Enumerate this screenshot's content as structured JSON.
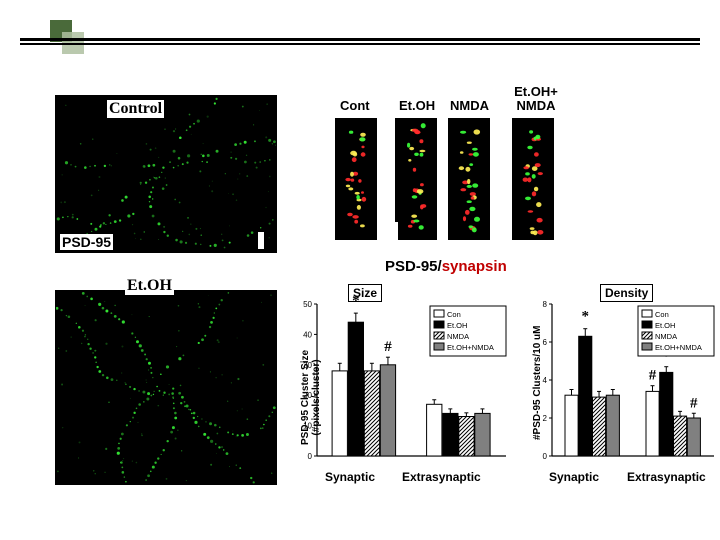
{
  "deco": {
    "accent1": "#4a6a3a",
    "accent2": "#aebfa0"
  },
  "micrographs": {
    "control_label": "Control",
    "psd95_label": "PSD-95",
    "etoh_label": "Et.OH",
    "signal_color": "#39ff39",
    "background": "#000000"
  },
  "dendrites": {
    "labels": [
      "Cont",
      "Et.OH",
      "NMDA",
      "Et.OH+\nNMDA"
    ],
    "psd_color": "#39ff39",
    "syn_color": "#ff2a2a",
    "coloc_color": "#ffee55"
  },
  "caption": {
    "part1": "PSD-95",
    "sep": "/",
    "part2": "synapsin"
  },
  "legend": {
    "items": [
      "Con",
      "Et.OH",
      "NMDA",
      "Et.OH+NMDA"
    ],
    "fills": [
      "#ffffff",
      "#000000",
      "hatch",
      "#808080"
    ]
  },
  "size_chart": {
    "title": "Size",
    "ylabel": "PSD-95 Cluster Size\n(#pixels/cluster)",
    "ymax": 50,
    "ytick_step": 10,
    "groups": [
      "Synaptic",
      "Extrasynaptic"
    ],
    "series": [
      "Con",
      "Et.OH",
      "NMDA",
      "Et.OH+NMDA"
    ],
    "values": [
      [
        28,
        44,
        28,
        30
      ],
      [
        17,
        14,
        13,
        14
      ]
    ],
    "errors": [
      [
        2.5,
        3,
        2.5,
        2.5
      ],
      [
        1.5,
        1.5,
        1.2,
        1.5
      ]
    ],
    "annotations": [
      {
        "text": "*",
        "group": 0,
        "bar": 1,
        "dy": -8
      },
      {
        "text": "#",
        "group": 0,
        "bar": 3,
        "dy": -6
      }
    ]
  },
  "density_chart": {
    "title": "Density",
    "ylabel": "#PSD-95 Clusters/10 uM",
    "ymax": 8,
    "ytick_step": 2,
    "groups": [
      "Synaptic",
      "Extrasynaptic"
    ],
    "series": [
      "Con",
      "Et.OH",
      "NMDA",
      "Et.OH+NMDA"
    ],
    "values": [
      [
        3.2,
        6.3,
        3.1,
        3.2
      ],
      [
        3.4,
        4.4,
        2.1,
        2.0
      ]
    ],
    "errors": [
      [
        0.3,
        0.4,
        0.3,
        0.3
      ],
      [
        0.3,
        0.3,
        0.25,
        0.25
      ]
    ],
    "annotations": [
      {
        "text": "*",
        "group": 0,
        "bar": 1,
        "dy": -8
      },
      {
        "text": "#",
        "group": 1,
        "bar": 0,
        "dy": -6
      },
      {
        "text": "*",
        "group": 1,
        "bar": 1,
        "dy": -6
      },
      {
        "text": "#",
        "group": 1,
        "bar": 3,
        "dy": -6
      }
    ]
  },
  "colors": {
    "axis": "#000000",
    "legend_border": "#000000",
    "bg": "#ffffff"
  }
}
